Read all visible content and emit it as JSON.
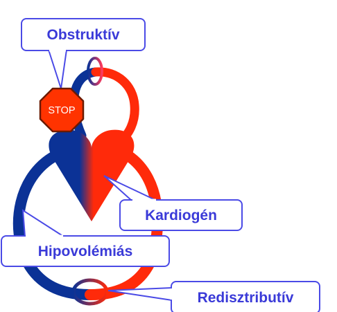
{
  "colors": {
    "venous": "#0b3296",
    "arterial": "#ff2a0a",
    "label_text": "#3a3ad8",
    "callout_border": "#4a4ae6",
    "stop_fill": "#ff3300",
    "stop_text": "#ffffff"
  },
  "labels": {
    "obstructive": "Obstruktív",
    "cardiogenic": "Kardiogén",
    "hypovolemic": "Hipovolémiás",
    "distributive": "Redisztributív"
  },
  "stop_sign": {
    "text": "STOP",
    "icon": "stop-sign-icon"
  }
}
